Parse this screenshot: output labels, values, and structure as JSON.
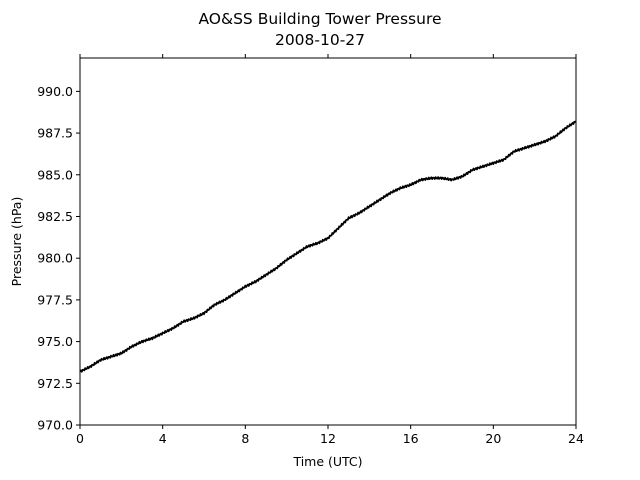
{
  "chart_data": {
    "type": "line",
    "title": "AO&SS Building Tower Pressure",
    "subtitle": "2008-10-27",
    "xlabel": "Time (UTC)",
    "ylabel": "Pressure (hPa)",
    "xlim": [
      0,
      24
    ],
    "ylim": [
      970.0,
      992.0
    ],
    "xticks": [
      0,
      4,
      8,
      12,
      16,
      20,
      24
    ],
    "xtick_labels": [
      "0",
      "4",
      "8",
      "12",
      "16",
      "20",
      "24"
    ],
    "yticks": [
      970.0,
      972.5,
      975.0,
      977.5,
      980.0,
      982.5,
      985.0,
      987.5,
      990.0
    ],
    "ytick_labels": [
      "970.0",
      "972.5",
      "975.0",
      "977.5",
      "980.0",
      "982.5",
      "985.0",
      "987.5",
      "990.0"
    ],
    "grid": false,
    "line_color": "#000000",
    "series": [
      {
        "x": [
          0,
          0.5,
          1,
          1.5,
          2,
          2.5,
          3,
          3.5,
          4,
          4.5,
          5,
          5.5,
          6,
          6.5,
          7,
          7.5,
          8,
          8.5,
          9,
          9.5,
          10,
          10.5,
          11,
          11.5,
          12,
          12.5,
          13,
          13.5,
          14,
          14.5,
          15,
          15.5,
          16,
          16.5,
          17,
          17.5,
          18,
          18.5,
          19,
          19.5,
          20,
          20.5,
          21,
          21.5,
          22,
          22.5,
          23,
          23.5,
          24
        ],
        "values": [
          973.2,
          973.5,
          973.9,
          974.1,
          974.3,
          974.7,
          975.0,
          975.2,
          975.5,
          975.8,
          976.2,
          976.4,
          976.7,
          977.2,
          977.5,
          977.9,
          978.3,
          978.6,
          979.0,
          979.4,
          979.9,
          980.3,
          980.7,
          980.9,
          981.2,
          981.8,
          982.4,
          982.7,
          983.1,
          983.5,
          983.9,
          984.2,
          984.4,
          984.7,
          984.8,
          984.8,
          984.7,
          984.9,
          985.3,
          985.5,
          985.7,
          985.9,
          986.4,
          986.6,
          986.8,
          987.0,
          987.3,
          987.8,
          988.2
        ]
      }
    ]
  }
}
